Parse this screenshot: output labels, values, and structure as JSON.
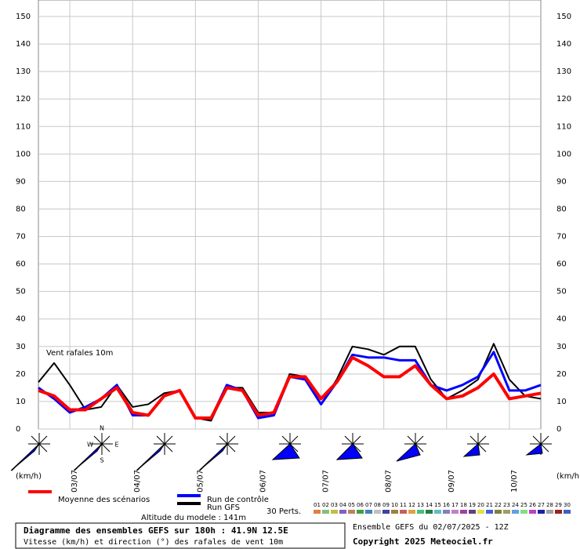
{
  "chart_data": {
    "type": "line",
    "annotation": "Vent rafales 10m",
    "y_unit_left": "(km/h)",
    "y_unit_right": "(km/h)",
    "x": [
      0,
      6,
      12,
      18,
      24,
      30,
      36,
      42,
      48,
      54,
      60,
      66,
      72,
      78,
      84,
      90,
      96,
      102,
      108,
      114,
      120,
      126,
      132,
      138,
      144,
      150,
      156,
      162,
      168,
      174,
      180,
      186,
      192
    ],
    "xlim": [
      0,
      192
    ],
    "xticks": [
      {
        "value": 12,
        "label": "03/07"
      },
      {
        "value": 36,
        "label": "04/07"
      },
      {
        "value": 60,
        "label": "05/07"
      },
      {
        "value": 84,
        "label": "06/07"
      },
      {
        "value": 108,
        "label": "07/07"
      },
      {
        "value": 132,
        "label": "08/07"
      },
      {
        "value": 156,
        "label": "09/07"
      },
      {
        "value": 180,
        "label": "10/07"
      }
    ],
    "ylim": [
      0,
      156
    ],
    "yticks": [
      0,
      10,
      20,
      30,
      40,
      50,
      60,
      70,
      80,
      90,
      100,
      110,
      120,
      130,
      140,
      150
    ],
    "grid": true,
    "series": [
      {
        "name": "Run GFS",
        "color": "#000000",
        "width": 2,
        "values": [
          17,
          24,
          16,
          7,
          8,
          16,
          8,
          9,
          13,
          14,
          4,
          3,
          15,
          15,
          6,
          6,
          20,
          19,
          9,
          18,
          30,
          29,
          27,
          30,
          30,
          18,
          11,
          14,
          18,
          31,
          18,
          12,
          11
        ]
      },
      {
        "name": "Run de contrôle",
        "color": "#0000ff",
        "width": 3,
        "values": [
          15,
          11,
          6,
          8,
          11,
          16,
          5,
          5,
          12,
          14,
          4,
          4,
          16,
          14,
          4,
          5,
          19,
          18,
          9,
          17,
          27,
          26,
          26,
          25,
          25,
          16,
          14,
          16,
          19,
          28,
          14,
          14,
          16
        ]
      },
      {
        "name": "Moyenne des scénarios",
        "color": "#ff0000",
        "width": 4,
        "values": [
          14,
          12,
          7,
          7,
          11,
          15,
          6,
          5,
          12,
          14,
          4,
          4,
          15,
          14,
          5,
          6,
          19,
          19,
          11,
          17,
          26,
          23,
          19,
          19,
          23,
          16,
          11,
          12,
          15,
          20,
          11,
          12,
          13
        ]
      }
    ],
    "perts_label": "30 Perts.",
    "perts": [
      {
        "name": "01",
        "color": "#e08040"
      },
      {
        "name": "02",
        "color": "#80c080"
      },
      {
        "name": "03",
        "color": "#c0c040"
      },
      {
        "name": "04",
        "color": "#8060c0"
      },
      {
        "name": "05",
        "color": "#c08060"
      },
      {
        "name": "06",
        "color": "#40a040"
      },
      {
        "name": "07",
        "color": "#4080c0"
      },
      {
        "name": "08",
        "color": "#c0c0c0"
      },
      {
        "name": "09",
        "color": "#4040a0"
      },
      {
        "name": "10",
        "color": "#a08040"
      },
      {
        "name": "11",
        "color": "#c06060"
      },
      {
        "name": "12",
        "color": "#e0a040"
      },
      {
        "name": "13",
        "color": "#40c080"
      },
      {
        "name": "14",
        "color": "#208040"
      },
      {
        "name": "15",
        "color": "#60c0c0"
      },
      {
        "name": "16",
        "color": "#8080c0"
      },
      {
        "name": "17",
        "color": "#c080c0"
      },
      {
        "name": "18",
        "color": "#a040a0"
      },
      {
        "name": "19",
        "color": "#604080"
      },
      {
        "name": "20",
        "color": "#e0e040"
      },
      {
        "name": "21",
        "color": "#4060e0"
      },
      {
        "name": "22",
        "color": "#808040"
      },
      {
        "name": "23",
        "color": "#a0a060"
      },
      {
        "name": "24",
        "color": "#60a0e0"
      },
      {
        "name": "25",
        "color": "#80e080"
      },
      {
        "name": "26",
        "color": "#c040c0"
      },
      {
        "name": "27",
        "color": "#2020a0"
      },
      {
        "name": "28",
        "color": "#a0a0a0"
      },
      {
        "name": "29",
        "color": "#a02020"
      },
      {
        "name": "30",
        "color": "#4060c0"
      }
    ],
    "compass": {
      "n": "N",
      "e": "E",
      "s": "S",
      "w": "W"
    },
    "altitude": "Altitude du modele : 141m",
    "run_info": "Ensemble GEFS du 02/07/2025 - 12Z",
    "title": "Diagramme des ensembles GEFS sur 180h : 41.9N 12.5E",
    "subtitle": "Vitesse (km/h) et direction (°) des rafales de vent 10m",
    "copyright": "Copyright 2025 Meteociel.fr"
  }
}
